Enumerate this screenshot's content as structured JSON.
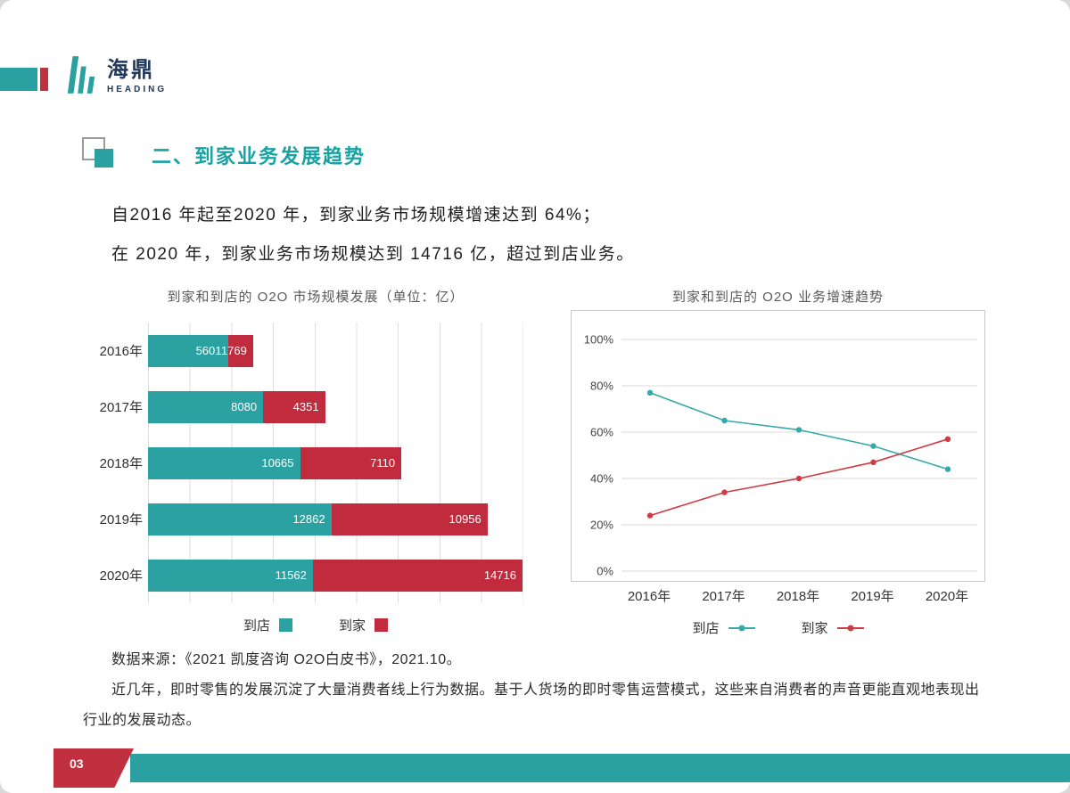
{
  "logo": {
    "name": "海鼎",
    "subtitle": "HEADING"
  },
  "heading": {
    "title": "二、到家业务发展趋势"
  },
  "intro": {
    "line1": "自2016 年起至2020 年，到家业务市场规模增速达到 64%；",
    "line2": "在 2020 年，到家业务市场规模达到 14716 亿，超过到店业务。"
  },
  "colors": {
    "accent_teal": "#2AA0A0",
    "accent_red": "#C1303F",
    "logo_navy": "#20395c",
    "heading_teal": "#17A2A4"
  },
  "chart_data": [
    {
      "type": "bar",
      "orientation": "horizontal",
      "stacked": true,
      "title": "到家和到店的 O2O 市场规模发展（单位：亿）",
      "categories": [
        "2016年",
        "2017年",
        "2018年",
        "2019年",
        "2020年"
      ],
      "series": [
        {
          "name": "到店",
          "color": "#2BA1A1",
          "values": [
            5601,
            8080,
            10665,
            12862,
            11562
          ]
        },
        {
          "name": "到家",
          "color": "#C02C3E",
          "values": [
            1769,
            4351,
            7110,
            10956,
            14716
          ]
        }
      ],
      "grid": true,
      "legend_position": "bottom"
    },
    {
      "type": "line",
      "title": "到家和到店的 O2O 业务增速趋势",
      "x": [
        "2016年",
        "2017年",
        "2018年",
        "2019年",
        "2020年"
      ],
      "series": [
        {
          "name": "到店",
          "color": "#35A9A9",
          "values": [
            77,
            65,
            61,
            54,
            44
          ]
        },
        {
          "name": "到家",
          "color": "#CE3B42",
          "values": [
            24,
            34,
            40,
            47,
            57
          ]
        }
      ],
      "ylim": [
        0,
        100
      ],
      "yticks": [
        "0%",
        "20%",
        "40%",
        "60%",
        "80%",
        "100%"
      ],
      "grid": true,
      "legend_position": "bottom"
    }
  ],
  "source_note": "数据来源：《2021 凯度咨询 O2O白皮书》，2021.10。",
  "paragraph": "近几年，即时零售的发展沉淀了大量消费者线上行为数据。基于人货场的即时零售运营模式，这些来自消费者的声音更能直观地表现出行业的发展动态。",
  "footer": {
    "page_number": "03"
  }
}
